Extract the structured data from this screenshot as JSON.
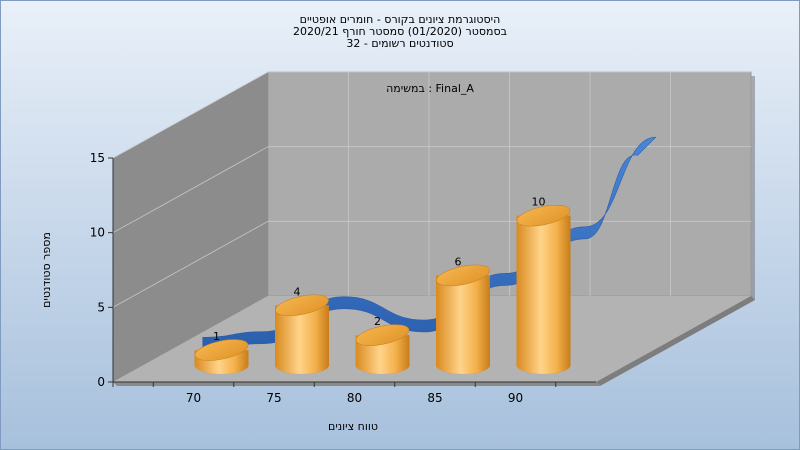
{
  "chart_data": {
    "type": "bar",
    "title_lines": [
      "היסטוגרמת ציונים בקורס - חומרים אופטיים",
      "בסמסטר  (01/2020)  סמסטר חורף 2020/21",
      "סטודנטים רשומים - 32"
    ],
    "annotation": "במשימה : Final_A",
    "xlabel": "טווח ציונים",
    "ylabel": "מספר סטודנטים",
    "x_ticks": [
      "70",
      "75",
      "80",
      "85",
      "90"
    ],
    "y_ticks": [
      "0",
      "5",
      "10",
      "15"
    ],
    "ylim": [
      0,
      15
    ],
    "categories": [
      "70",
      "75",
      "80",
      "85",
      "90"
    ],
    "values": [
      1,
      4,
      2,
      6,
      10
    ],
    "data_labels": [
      "1",
      "4",
      "2",
      "6",
      "10"
    ],
    "grid": true,
    "legend": "none",
    "colors": {
      "background_top": "#e6eef8",
      "background_bottom": "#a9c2de",
      "wall": "#a8a8a8",
      "left_wall": "#8a8a8a",
      "floor": "#b4b4b4",
      "bar": "#f0a83a",
      "curve": "#3a73c4"
    }
  }
}
